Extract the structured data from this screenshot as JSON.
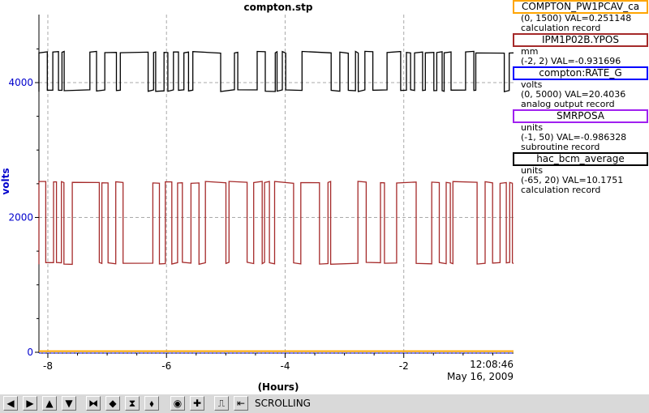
{
  "chart_data": {
    "type": "line",
    "title": "compton.stp",
    "ylabel": "volts",
    "xlabel": "(Hours)",
    "ylim": [
      0,
      5000
    ],
    "xlim": [
      -8.15,
      -0.15
    ],
    "yticks": [
      {
        "v": 0,
        "label": "0"
      },
      {
        "v": 2000,
        "label": "2000"
      },
      {
        "v": 4000,
        "label": "4000"
      }
    ],
    "xticks": [
      {
        "v": -8,
        "label": "-8"
      },
      {
        "v": -6,
        "label": "-6"
      },
      {
        "v": -4,
        "label": "-4"
      },
      {
        "v": -2,
        "label": "-2"
      }
    ],
    "time_label": "12:08:46",
    "date_label": "May 16, 2009",
    "grid": true,
    "series": [
      {
        "name": "COMPTON_PW1PCAV_ca",
        "color": "#ffa500",
        "style": "flat",
        "value": 5
      },
      {
        "name": "compton:RATE_G",
        "color": "#0000ff",
        "style": "flat-dashed",
        "value": 0
      },
      {
        "name": "hac_bcm_average",
        "color": "#000000",
        "style": "toggle",
        "high": 4450,
        "low": 3880,
        "start": -8.15,
        "end": -0.15,
        "seed": 7
      },
      {
        "name": "IPM1P02B.YPOS",
        "color": "#a52a2a",
        "style": "toggle",
        "high": 2520,
        "low": 1320,
        "start": -8.15,
        "end": -0.15,
        "seed": 13
      },
      {
        "name": "SMRPOSA",
        "color": "#a020f0",
        "style": "none"
      }
    ]
  },
  "legend": [
    {
      "name": "COMPTON_PW1PCAV_ca",
      "color": "#ffa500",
      "units": "",
      "range": "(0, 1500) VAL=0.251148",
      "type": "calculation record"
    },
    {
      "name": "IPM1P02B.YPOS",
      "color": "#a52a2a",
      "units": "mm",
      "range": "(-2, 2) VAL=-0.931696",
      "type": ""
    },
    {
      "name": "compton:RATE_G",
      "color": "#0000ff",
      "units": "volts",
      "range": "(0, 5000) VAL=20.4036",
      "type": "analog output record"
    },
    {
      "name": "SMRPOSA",
      "color": "#a020f0",
      "units": "units",
      "range": "(-1, 50) VAL=-0.986328",
      "type": "subroutine record"
    },
    {
      "name": "hac_bcm_average",
      "color": "#000000",
      "units": "units",
      "range": "(-65, 20) VAL=10.1751",
      "type": "calculation record"
    }
  ],
  "toolbar": {
    "mode": "SCROLLING",
    "buttons": [
      {
        "name": "scroll-left-button",
        "glyph": "◀"
      },
      {
        "name": "scroll-right-button",
        "glyph": "▶"
      },
      {
        "name": "scroll-up-button",
        "glyph": "▲"
      },
      {
        "name": "scroll-down-button",
        "glyph": "▼"
      },
      {
        "name": "zoom-in-x-button",
        "glyph": "⧓"
      },
      {
        "name": "zoom-out-x-button",
        "glyph": "◆"
      },
      {
        "name": "zoom-in-y-button",
        "glyph": "⧗"
      },
      {
        "name": "zoom-out-y-button",
        "glyph": "⬧"
      },
      {
        "name": "autoscale-button",
        "glyph": "◉"
      },
      {
        "name": "add-button",
        "glyph": "✚"
      },
      {
        "name": "print-button",
        "glyph": "⎍"
      },
      {
        "name": "scroll-mode-button",
        "glyph": "⇤"
      }
    ]
  }
}
